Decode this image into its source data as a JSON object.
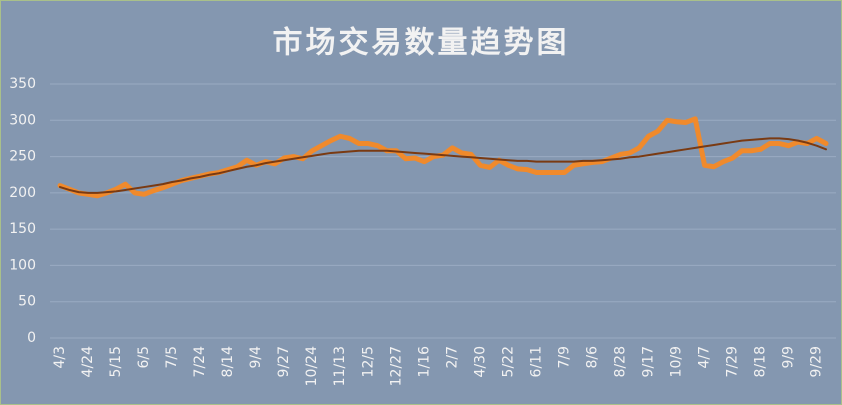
{
  "chart_data": {
    "type": "line",
    "title": "市场交易数量趋势图",
    "categories": [
      "4/3",
      null,
      null,
      "4/24",
      null,
      null,
      "5/15",
      null,
      null,
      "6/5",
      null,
      null,
      "7/5",
      null,
      null,
      "7/24",
      null,
      null,
      "8/14",
      null,
      null,
      "9/4",
      null,
      null,
      "9/27",
      null,
      null,
      "10/24",
      null,
      null,
      "11/13",
      null,
      null,
      "12/5",
      null,
      null,
      "12/27",
      null,
      null,
      "1/16",
      null,
      null,
      "2/7",
      null,
      null,
      "4/30",
      null,
      null,
      "5/22",
      null,
      null,
      "6/11",
      null,
      null,
      "7/9",
      null,
      null,
      "8/6",
      null,
      null,
      "8/28",
      null,
      null,
      "9/17",
      null,
      null,
      "10/9",
      null,
      null,
      "4/7",
      null,
      null,
      "7/29",
      null,
      null,
      "8/18",
      null,
      null,
      "9/9",
      null,
      null,
      "9/29",
      null
    ],
    "series": [
      {
        "color": "#f08a2c",
        "width": 5,
        "values": [
          210,
          205,
          200,
          198,
          196,
          200,
          205,
          212,
          200,
          198,
          203,
          207,
          212,
          217,
          220,
          223,
          226,
          228,
          232,
          236,
          245,
          238,
          243,
          240,
          248,
          250,
          247,
          258,
          265,
          272,
          278,
          275,
          268,
          268,
          265,
          258,
          258,
          247,
          248,
          243,
          250,
          252,
          262,
          255,
          253,
          238,
          235,
          245,
          238,
          233,
          232,
          228,
          228,
          228,
          228,
          238,
          240,
          242,
          243,
          248,
          253,
          255,
          262,
          278,
          285,
          300,
          298,
          297,
          302,
          238,
          236,
          243,
          248,
          258,
          258,
          260,
          268,
          268,
          265,
          270,
          268,
          275,
          268
        ]
      },
      {
        "color": "#7a3a12",
        "width": 2,
        "values": [
          208,
          204,
          201,
          200,
          200,
          201,
          202,
          204,
          206,
          208,
          210,
          212,
          215,
          217,
          220,
          222,
          225,
          227,
          230,
          233,
          236,
          238,
          241,
          243,
          245,
          247,
          249,
          251,
          253,
          255,
          256,
          257,
          258,
          258,
          258,
          258,
          257,
          256,
          255,
          254,
          253,
          252,
          251,
          250,
          249,
          248,
          247,
          246,
          245,
          244,
          244,
          243,
          243,
          243,
          243,
          243,
          244,
          244,
          245,
          246,
          247,
          249,
          250,
          252,
          254,
          256,
          258,
          260,
          262,
          264,
          266,
          268,
          270,
          272,
          273,
          274,
          275,
          275,
          274,
          272,
          269,
          265,
          260
        ]
      }
    ],
    "ylim": [
      0,
      350
    ],
    "yticks": [
      0,
      50,
      100,
      150,
      200,
      250,
      300,
      350
    ],
    "grid": true
  }
}
